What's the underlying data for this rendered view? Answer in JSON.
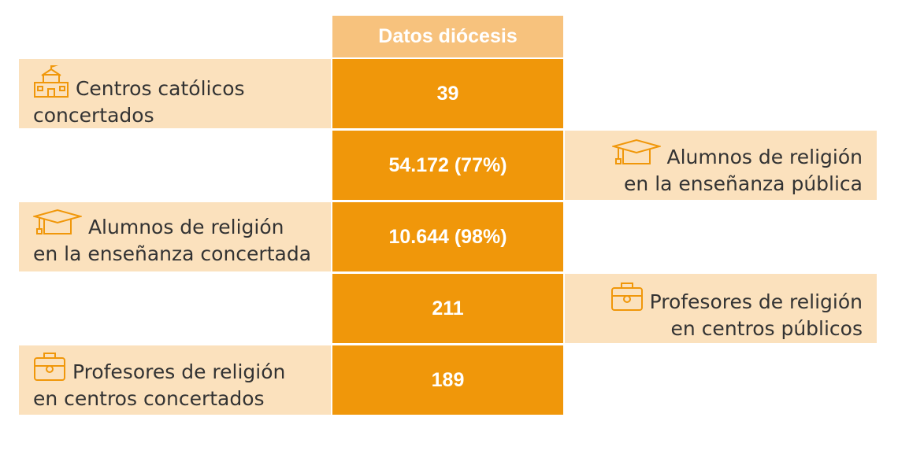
{
  "header": "Datos diócesis",
  "rows": [
    {
      "value": "39",
      "label_line1": "Centros católicos",
      "label_line2": "concertados",
      "icon": "school-building-icon",
      "side": "left"
    },
    {
      "value": "54.172 (77%)",
      "label_line1": "Alumnos  de religión",
      "label_line2": "en la enseñanza pública",
      "icon": "graduation-cap-icon",
      "side": "right"
    },
    {
      "value": "10.644 (98%)",
      "label_line1": "Alumnos  de religión",
      "label_line2": "en la enseñanza concertada",
      "icon": "graduation-cap-icon",
      "side": "left"
    },
    {
      "value": "211",
      "label_line1": "Profesores de religión",
      "label_line2": "en centros públicos",
      "icon": "briefcase-icon",
      "side": "right"
    },
    {
      "value": "189",
      "label_line1": "Profesores de religión",
      "label_line2": "en centros concertados",
      "icon": "briefcase-icon",
      "side": "left"
    }
  ],
  "colors": {
    "header_bg": "#f7c27d",
    "value_bg": "#f0970a",
    "label_bg": "#fbe1bd",
    "icon": "#f0970a",
    "text": "#333333"
  }
}
